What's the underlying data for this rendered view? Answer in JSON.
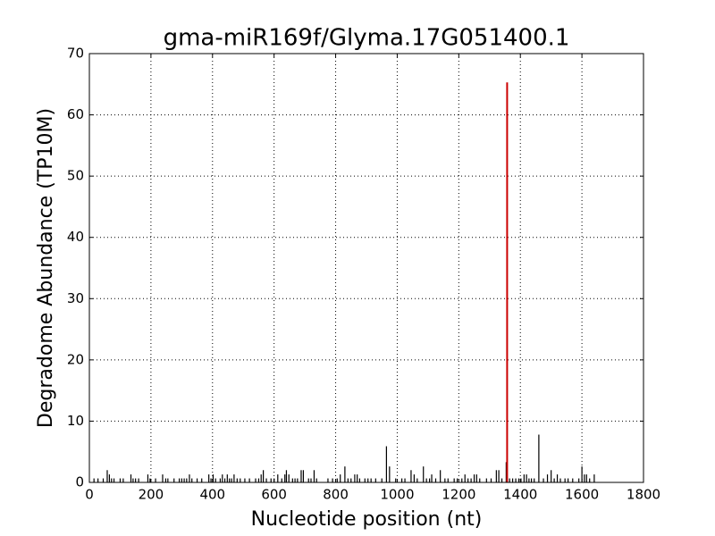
{
  "chart_data": {
    "type": "spike",
    "title": "gma-miR169f/Glyma.17G051400.1",
    "xlabel": "Nucleotide position (nt)",
    "ylabel": "Degradome Abundance (TP10M)",
    "xlim": [
      0,
      1800
    ],
    "ylim": [
      0,
      70
    ],
    "xticks": [
      0,
      200,
      400,
      600,
      800,
      1000,
      1200,
      1400,
      1600,
      1800
    ],
    "yticks": [
      0,
      10,
      20,
      30,
      40,
      50,
      60,
      70
    ],
    "grid": true,
    "series": [
      {
        "color": "#000000",
        "x": [
          15,
          28,
          45,
          58,
          65,
          72,
          80,
          100,
          110,
          135,
          142,
          150,
          160,
          190,
          197,
          215,
          238,
          248,
          255,
          275,
          292,
          300,
          308,
          316,
          325,
          333,
          350,
          365,
          388,
          395,
          402,
          410,
          425,
          432,
          440,
          448,
          455,
          462,
          470,
          480,
          490,
          505,
          520,
          540,
          550,
          558,
          565,
          575,
          590,
          600,
          612,
          625,
          635,
          640,
          648,
          660,
          668,
          676,
          688,
          695,
          712,
          720,
          730,
          738,
          775,
          790,
          805,
          815,
          830,
          840,
          850,
          862,
          870,
          878,
          895,
          905,
          915,
          930,
          950,
          965,
          975,
          995,
          1015,
          1025,
          1045,
          1055,
          1065,
          1085,
          1095,
          1105,
          1112,
          1125,
          1140,
          1155,
          1165,
          1185,
          1195,
          1210,
          1220,
          1230,
          1240,
          1250,
          1258,
          1268,
          1290,
          1305,
          1322,
          1330,
          1340,
          1354,
          1365,
          1375,
          1385,
          1395,
          1402,
          1412,
          1420,
          1428,
          1436,
          1445,
          1460,
          1475,
          1488,
          1500,
          1510,
          1520,
          1530,
          1545,
          1555,
          1570,
          1590,
          1600,
          1608,
          1615,
          1625,
          1640
        ],
        "values": [
          0.65,
          0.65,
          0.65,
          2,
          1.3,
          0.65,
          0.65,
          0.65,
          0.65,
          1.3,
          0.65,
          0.65,
          0.65,
          1.3,
          0.65,
          0.65,
          1.3,
          0.65,
          0.65,
          0.65,
          0.65,
          0.65,
          0.65,
          0.65,
          1.3,
          0.65,
          0.65,
          0.65,
          1.3,
          0.65,
          1.3,
          0.65,
          0.65,
          1.3,
          0.65,
          1.3,
          0.65,
          0.65,
          1.3,
          0.65,
          0.65,
          0.65,
          0.65,
          0.65,
          0.65,
          1.3,
          2,
          0.65,
          0.65,
          0.65,
          1.3,
          0.65,
          1.3,
          2,
          1.3,
          0.65,
          0.65,
          0.65,
          2,
          2,
          0.65,
          0.65,
          2,
          0.65,
          0.65,
          0.65,
          0.65,
          1.3,
          2.6,
          0.65,
          0.65,
          1.3,
          1.3,
          0.65,
          0.65,
          0.65,
          0.65,
          0.65,
          0.65,
          5.9,
          2.6,
          0.65,
          0.65,
          0.65,
          2,
          1.3,
          0.65,
          2.6,
          0.65,
          0.65,
          1.3,
          0.65,
          2,
          0.65,
          0.65,
          0.65,
          0.65,
          0.65,
          1.3,
          0.65,
          0.65,
          1.3,
          1.3,
          0.65,
          0.65,
          0.65,
          2,
          2,
          0.65,
          3.3,
          0.65,
          0.65,
          0.65,
          0.65,
          0.65,
          1.3,
          1.3,
          0.65,
          0.65,
          0.65,
          7.8,
          0.65,
          1.3,
          2,
          0.65,
          1.3,
          0.65,
          0.65,
          0.65,
          0.65,
          0.65,
          2.6,
          1.3,
          1.3,
          0.65,
          1.3
        ]
      },
      {
        "color": "#cc0000",
        "x": [
          1357
        ],
        "values": [
          65.3
        ]
      }
    ]
  }
}
